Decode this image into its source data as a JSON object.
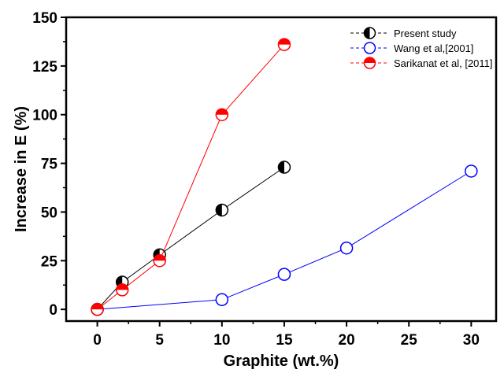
{
  "chart_data": {
    "type": "line",
    "xlabel": "Graphite (wt.%)",
    "ylabel": "Increase in E (%)",
    "xlim": [
      -2.5,
      32
    ],
    "ylim": [
      -6,
      150
    ],
    "x_ticks": [
      0,
      5,
      10,
      15,
      20,
      25,
      30
    ],
    "y_ticks": [
      0,
      25,
      50,
      75,
      100,
      125,
      150
    ],
    "x_tick_labels": [
      "0",
      "5",
      "10",
      "15",
      "20",
      "25",
      "30"
    ],
    "y_tick_labels": [
      "0",
      "25",
      "50",
      "75",
      "100",
      "125",
      "150"
    ],
    "grid": false,
    "legend_position": "top-right",
    "series": [
      {
        "name": "Present study",
        "color": "#000000",
        "marker": "circle-left-half-filled",
        "x": [
          0,
          2,
          5,
          10,
          15
        ],
        "y": [
          0,
          14,
          28,
          51,
          73
        ]
      },
      {
        "name": "Wang et al,[2001]",
        "color": "#0000ff",
        "marker": "circle-open",
        "x": [
          0,
          10,
          15,
          20,
          30
        ],
        "y": [
          0,
          5,
          18,
          31.5,
          71
        ]
      },
      {
        "name": "Sarikanat et al, [2011]",
        "color": "#ff0000",
        "marker": "circle-top-half-filled",
        "x": [
          0,
          2,
          5,
          10,
          15
        ],
        "y": [
          0,
          10,
          25,
          100,
          136
        ]
      }
    ]
  }
}
